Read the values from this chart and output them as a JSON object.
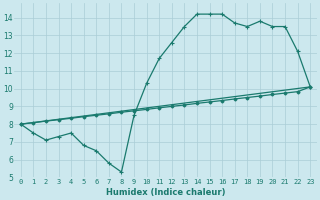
{
  "xlabel": "Humidex (Indice chaleur)",
  "bg_color": "#cce8ee",
  "grid_color": "#aacdd6",
  "line_color": "#1a7a6e",
  "xlim": [
    -0.5,
    23.5
  ],
  "ylim": [
    5,
    14.8
  ],
  "yticks": [
    5,
    6,
    7,
    8,
    9,
    10,
    11,
    12,
    13,
    14
  ],
  "xticks": [
    0,
    1,
    2,
    3,
    4,
    5,
    6,
    7,
    8,
    9,
    10,
    11,
    12,
    13,
    14,
    15,
    16,
    17,
    18,
    19,
    20,
    21,
    22,
    23
  ],
  "line1_x": [
    0,
    1,
    2,
    3,
    4,
    5,
    6,
    7,
    8,
    9,
    10,
    11,
    12,
    13,
    14,
    15,
    16,
    17,
    18,
    19,
    20,
    21,
    22,
    23
  ],
  "line1_y": [
    8.0,
    7.5,
    7.1,
    7.3,
    7.5,
    6.8,
    6.5,
    5.8,
    5.3,
    8.5,
    10.3,
    11.7,
    12.6,
    13.5,
    14.2,
    14.2,
    14.2,
    13.7,
    13.5,
    13.8,
    13.5,
    13.5,
    12.1,
    10.1
  ],
  "line2_x": [
    0,
    1,
    2,
    3,
    4,
    5,
    6,
    7,
    8,
    9,
    10,
    11,
    12,
    13,
    14,
    15,
    16,
    17,
    18,
    19,
    20,
    21,
    22,
    23
  ],
  "line2_y": [
    8.0,
    8.08,
    8.17,
    8.25,
    8.33,
    8.42,
    8.5,
    8.58,
    8.67,
    8.75,
    8.83,
    8.92,
    9.0,
    9.08,
    9.17,
    9.25,
    9.33,
    9.42,
    9.5,
    9.58,
    9.67,
    9.75,
    9.83,
    10.1
  ],
  "line3_x": [
    0,
    23
  ],
  "line3_y": [
    8.0,
    10.1
  ]
}
